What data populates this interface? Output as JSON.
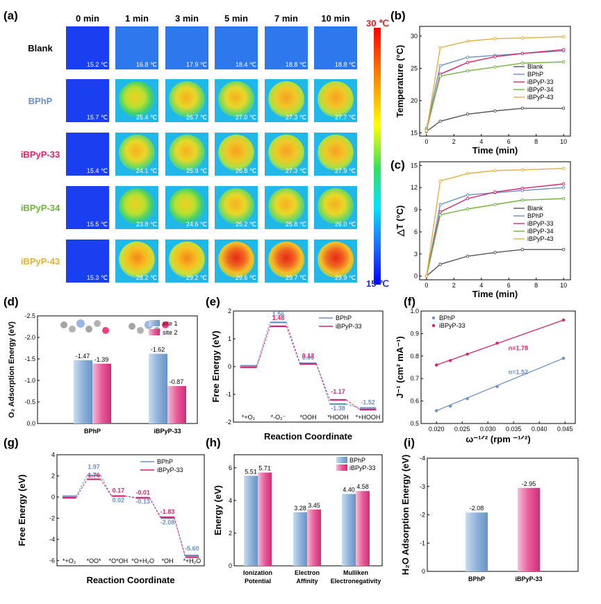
{
  "panel_labels": {
    "a": "(a)",
    "b": "(b)",
    "c": "(c)",
    "d": "(d)",
    "e": "(e)",
    "f": "(f)",
    "g": "(g)",
    "h": "(h)",
    "i": "(i)"
  },
  "thermal": {
    "times": [
      "0 min",
      "1 min",
      "3 min",
      "5 min",
      "7 min",
      "10 min"
    ],
    "samples": [
      {
        "name": "Blank",
        "color": "#000000",
        "temps": [
          "15.2 ℃",
          "16.8 ℃",
          "17.9 ℃",
          "18.4 ℃",
          "18.8 ℃",
          "18.8 ℃"
        ]
      },
      {
        "name": "BPhP",
        "color": "#6b8fc7",
        "temps": [
          "15.7 ℃",
          "25.4 ℃",
          "26.7 ℃",
          "27.0 ℃",
          "27.3 ℃",
          "27.7 ℃"
        ]
      },
      {
        "name": "iBPyP-33",
        "color": "#d6246e",
        "temps": [
          "15.4 ℃",
          "24.1 ℃",
          "25.9 ℃",
          "26.8 ℃",
          "27.3 ℃",
          "27.9 ℃"
        ]
      },
      {
        "name": "iBPyP-34",
        "color": "#6fb43c",
        "temps": [
          "15.5 ℃",
          "23.8 ℃",
          "24.6 ℃",
          "25.2 ℃",
          "25.8 ℃",
          "26.0 ℃"
        ]
      },
      {
        "name": "iBPyP-43",
        "color": "#e0b040",
        "temps": [
          "15.3 ℃",
          "28.2 ℃",
          "29.2 ℃",
          "29.6 ℃",
          "29.7 ℃",
          "29.9 ℃"
        ]
      }
    ],
    "scale_max": "30 ℃",
    "scale_min": "15 ℃"
  },
  "chart_data": [
    {
      "id": "b",
      "type": "line",
      "xlabel": "Time (min)",
      "ylabel": "Temperature (°C)",
      "x": [
        0,
        1,
        3,
        5,
        7,
        10
      ],
      "xlim": [
        -0.5,
        10.5
      ],
      "ylim": [
        14.5,
        31.5
      ],
      "xticks": [
        "0",
        "2",
        "4",
        "6",
        "8",
        "10"
      ],
      "yticks": [
        "15",
        "20",
        "25",
        "30"
      ],
      "legend": "right",
      "series": [
        {
          "name": "Blank",
          "color": "#555555",
          "values": [
            15.2,
            16.8,
            17.9,
            18.4,
            18.8,
            18.8
          ]
        },
        {
          "name": "BPhP",
          "color": "#6b8fc7",
          "values": [
            15.7,
            25.4,
            26.7,
            27.0,
            27.3,
            27.7
          ]
        },
        {
          "name": "iBPyP-33",
          "color": "#d6246e",
          "values": [
            15.4,
            24.1,
            25.9,
            26.8,
            27.3,
            27.9
          ]
        },
        {
          "name": "iBPyP-34",
          "color": "#6fb43c",
          "values": [
            15.5,
            23.8,
            24.6,
            25.2,
            25.8,
            26.0
          ]
        },
        {
          "name": "iBPyP-43",
          "color": "#e0b040",
          "values": [
            15.3,
            28.2,
            29.2,
            29.6,
            29.7,
            29.9
          ]
        }
      ]
    },
    {
      "id": "c",
      "type": "line",
      "xlabel": "Time (min)",
      "ylabel": "△T (°C)",
      "x": [
        0,
        1,
        3,
        5,
        7,
        10
      ],
      "xlim": [
        -0.5,
        10.5
      ],
      "ylim": [
        -0.5,
        15.5
      ],
      "xticks": [
        "0",
        "2",
        "4",
        "6",
        "8",
        "10"
      ],
      "yticks": [
        "0",
        "3",
        "6",
        "9",
        "12",
        "15"
      ],
      "legend": "right",
      "series": [
        {
          "name": "Blank",
          "color": "#555555",
          "values": [
            0,
            1.6,
            2.7,
            3.2,
            3.6,
            3.6
          ]
        },
        {
          "name": "BPhP",
          "color": "#6b8fc7",
          "values": [
            0,
            9.7,
            11.0,
            11.3,
            11.6,
            12.0
          ]
        },
        {
          "name": "iBPyP-33",
          "color": "#d6246e",
          "values": [
            0,
            8.7,
            10.5,
            11.4,
            11.9,
            12.5
          ]
        },
        {
          "name": "iBPyP-34",
          "color": "#6fb43c",
          "values": [
            0,
            8.3,
            9.1,
            9.7,
            10.3,
            10.5
          ]
        },
        {
          "name": "iBPyP-43",
          "color": "#e0b040",
          "values": [
            0,
            12.9,
            13.9,
            14.3,
            14.4,
            14.6
          ]
        }
      ]
    },
    {
      "id": "d",
      "type": "bar",
      "ylabel": "O₂ Adsorption  Energy (eV)",
      "categories": [
        "BPhP",
        "iBPyP-33"
      ],
      "ylim": [
        0,
        -2.5
      ],
      "yticks": [
        "0.0",
        "-0.5",
        "-1.0",
        "-1.5",
        "-2.0",
        "-2.5"
      ],
      "legend": "top-right",
      "series": [
        {
          "name": "site 1",
          "color": "#8fb3dc",
          "values": [
            -1.47,
            -1.62
          ],
          "labels": [
            "-1.47",
            "-1.62"
          ]
        },
        {
          "name": "site 2",
          "color": "#e85c9b",
          "values": [
            -1.39,
            -0.87
          ],
          "labels": [
            "-1.39",
            "-0.87"
          ]
        }
      ]
    },
    {
      "id": "e",
      "type": "line",
      "xlabel": "Reaction Coordinate",
      "ylabel": "Free Energy (eV)",
      "states": [
        "*+O₂",
        "*-O₂⁻",
        "*OOH",
        "*HOOH",
        "*+HOOH"
      ],
      "ylim": [
        -2.0,
        2.0
      ],
      "yticks": [
        "-2",
        "-1",
        "0",
        "1",
        "2"
      ],
      "legend": "top-right",
      "series": [
        {
          "name": "BPhP",
          "color": "#6b8fc7",
          "values": [
            0,
            1.56,
            0.09,
            -1.38,
            -1.52
          ],
          "labels": [
            "",
            "1.56",
            "0.09",
            "-1.38",
            "-1.52"
          ]
        },
        {
          "name": "iBPyP-33",
          "color": "#d6246e",
          "values": [
            0,
            1.48,
            0.12,
            -1.17,
            -1.52
          ],
          "labels": [
            "",
            "1.48",
            "0.12",
            "-1.17",
            ""
          ]
        }
      ]
    },
    {
      "id": "f",
      "type": "scatter",
      "xlabel": "ω⁻¹ᐟ² (rpm ⁻¹ᐟ²)",
      "ylabel": "J⁻¹ (cm² mA⁻¹)",
      "xlim": [
        0.017,
        0.047
      ],
      "ylim": [
        0.5,
        1.0
      ],
      "xticks": [
        "0.020",
        "0.025",
        "0.030",
        "0.035",
        "0.040",
        "0.045"
      ],
      "yticks": [
        "0.5",
        "0.6",
        "0.7",
        "0.8",
        "0.9",
        "1.0"
      ],
      "legend": "top-left",
      "series": [
        {
          "name": "BPhP",
          "color": "#6b8fc7",
          "x": [
            0.02,
            0.0227,
            0.026,
            0.0318,
            0.0447
          ],
          "values": [
            0.557,
            0.577,
            0.61,
            0.664,
            0.79
          ],
          "annotation": "n=1.52"
        },
        {
          "name": "iBPyP-33",
          "color": "#d6246e",
          "x": [
            0.02,
            0.0227,
            0.026,
            0.0318,
            0.0447
          ],
          "values": [
            0.76,
            0.78,
            0.808,
            0.857,
            0.96
          ],
          "annotation": "n=1.78"
        }
      ]
    },
    {
      "id": "g",
      "type": "line",
      "xlabel": "Reaction Coordinate",
      "ylabel": "Free Energy (eV)",
      "states": [
        "*+O₂",
        "*OO*",
        "*O*OH",
        "*O+H₂O",
        "*OH",
        "*+H₂O"
      ],
      "ylim": [
        -6.5,
        4.0
      ],
      "yticks": [
        "-6",
        "-4",
        "-2",
        "0",
        "2",
        "4"
      ],
      "legend": "top-right",
      "series": [
        {
          "name": "BPhP",
          "color": "#6b8fc7",
          "values": [
            0,
            1.97,
            0.02,
            -0.13,
            -2.08,
            -5.6
          ],
          "labels": [
            "",
            "1.97",
            "0.02",
            "-0.13",
            "-2.08",
            "-5.60"
          ]
        },
        {
          "name": "iBPyP-33",
          "color": "#d6246e",
          "values": [
            0,
            1.76,
            0.17,
            -0.01,
            -1.83,
            -5.6
          ],
          "labels": [
            "",
            "1.76",
            "0.17",
            "-0.01",
            "-1.83",
            ""
          ]
        }
      ]
    },
    {
      "id": "h",
      "type": "bar",
      "ylabel": "Energy (eV)",
      "categories": [
        "Ionization Potential",
        "Electron Affinity",
        "Mulliken Electronegativity"
      ],
      "ylim": [
        0,
        6.8
      ],
      "yticks": [
        "0",
        "2",
        "4",
        "6"
      ],
      "legend": "top-right",
      "series": [
        {
          "name": "BPhP",
          "color": "#8fb3dc",
          "values": [
            5.51,
            3.28,
            4.4
          ],
          "labels": [
            "5.51",
            "3.28",
            "4.40"
          ]
        },
        {
          "name": "iBPyP-33",
          "color": "#e85c9b",
          "values": [
            5.71,
            3.45,
            4.58
          ],
          "labels": [
            "5.71",
            "3.45",
            "4.58"
          ]
        }
      ]
    },
    {
      "id": "i",
      "type": "bar",
      "ylabel": "H₂O Adsorption Energy (eV)",
      "categories": [
        "BPhP",
        "iBPyP-33"
      ],
      "ylim": [
        0,
        -4
      ],
      "yticks": [
        "0",
        "-1",
        "-2",
        "-3",
        "-4"
      ],
      "series": [
        {
          "name": "",
          "colors": [
            "#8fb3dc",
            "#e85c9b"
          ],
          "values": [
            -2.08,
            -2.95
          ],
          "labels": [
            "-2.08",
            "-2.95"
          ]
        }
      ]
    }
  ]
}
